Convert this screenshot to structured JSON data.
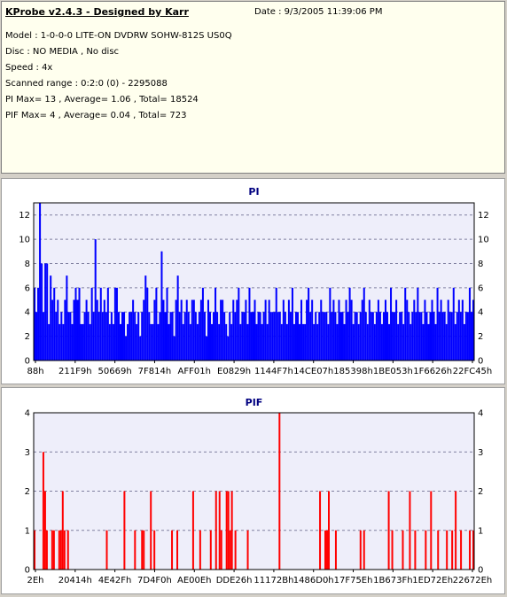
{
  "header": {
    "title": "KProbe v2.4.3 - Designed by Karr",
    "date": "Date : 9/3/2005 11:39:06 PM",
    "lines": [
      "Model : 1-0-0-0 LITE-ON DVDRW SOHW-812S  US0Q",
      "Disc : NO MEDIA , No disc",
      "Speed : 4x",
      "Scanned range : 0:2:0 (0) - 2295088",
      "PI Max= 13 , Average= 1.06 , Total= 18524",
      "PIF Max= 4 , Average= 0.04 , Total= 723"
    ]
  },
  "colors": {
    "background": "#d4d0c8",
    "info_background": "#ffffee",
    "plot_background": "#eeeefa",
    "pi_series": "#0000ff",
    "pif_series": "#ff0000",
    "chart_title": "#000080",
    "gridline": "#8080a0"
  },
  "chart_data": [
    {
      "type": "bar",
      "title": "PI",
      "ylim": [
        0,
        13
      ],
      "yticks": [
        0,
        2,
        4,
        6,
        8,
        10,
        12
      ],
      "y_axis_both_sides": true,
      "grid": "horizontal dashed",
      "xticks": [
        "88h",
        "211F9h",
        "50669h",
        "7F814h",
        "AFF01h",
        "E0829h",
        "1144F7h",
        "14CE07h",
        "185398h",
        "1BE053h",
        "1F6626h",
        "22FC45h"
      ],
      "series": [
        {
          "values": [
            6,
            4,
            6,
            13,
            8,
            4,
            8,
            8,
            3,
            7,
            5,
            6,
            4,
            5,
            3,
            4,
            3,
            5,
            7,
            4,
            4,
            3,
            5,
            6,
            5,
            6,
            3,
            3,
            4,
            5,
            4,
            3,
            6,
            4,
            10,
            5,
            4,
            6,
            4,
            5,
            4,
            6,
            3,
            4,
            3,
            6,
            6,
            4,
            3,
            4,
            4,
            2,
            3,
            4,
            4,
            5,
            4,
            3,
            4,
            2,
            4,
            5,
            7,
            6,
            4,
            3,
            3,
            5,
            6,
            3,
            4,
            9,
            5,
            4,
            6,
            3,
            4,
            4,
            2,
            5,
            7,
            4,
            5,
            3,
            4,
            5,
            4,
            3,
            5,
            5,
            4,
            3,
            4,
            5,
            6,
            4,
            2,
            5,
            4,
            3,
            4,
            6,
            4,
            3,
            5,
            5,
            4,
            3,
            2,
            4,
            3,
            5,
            4,
            5,
            6,
            3,
            4,
            4,
            5,
            3,
            6,
            4,
            4,
            5,
            3,
            4,
            4,
            3,
            4,
            5,
            3,
            5,
            4,
            4,
            4,
            6,
            4,
            4,
            3,
            5,
            4,
            3,
            5,
            4,
            6,
            3,
            4,
            4,
            3,
            5,
            3,
            3,
            5,
            6,
            4,
            5,
            3,
            4,
            3,
            4,
            5,
            4,
            4,
            4,
            3,
            6,
            4,
            5,
            4,
            3,
            5,
            4,
            4,
            3,
            5,
            4,
            6,
            5,
            3,
            4,
            4,
            3,
            4,
            5,
            6,
            4,
            3,
            5,
            4,
            4,
            3,
            4,
            5,
            4,
            3,
            4,
            5,
            4,
            3,
            6,
            4,
            4,
            5,
            3,
            4,
            4,
            3,
            6,
            5,
            4,
            3,
            4,
            5,
            4,
            6,
            4,
            4,
            3,
            5,
            4,
            3,
            4,
            5,
            4,
            3,
            6,
            4,
            5,
            4,
            4,
            3,
            5,
            4,
            4,
            6,
            3,
            4,
            5,
            4,
            5,
            3,
            4,
            4,
            6,
            4,
            5
          ]
        }
      ]
    },
    {
      "type": "bar",
      "title": "PIF",
      "ylim": [
        0,
        4
      ],
      "yticks": [
        0,
        1,
        2,
        3,
        4
      ],
      "y_axis_both_sides": true,
      "grid": "horizontal dashed",
      "xticks": [
        "2Eh",
        "20414h",
        "4E42Fh",
        "7D4F0h",
        "AE00Eh",
        "DDE26h",
        "11172Bh",
        "1486D0h",
        "17F75Eh",
        "1B673Fh",
        "1ED72Eh",
        "22672Eh"
      ],
      "series": [
        {
          "values": [
            1,
            0,
            0,
            0,
            0,
            3,
            2,
            1,
            0,
            0,
            1,
            1,
            0,
            0,
            1,
            1,
            2,
            1,
            0,
            1,
            0,
            0,
            0,
            0,
            0,
            0,
            0,
            0,
            0,
            0,
            0,
            0,
            0,
            0,
            0,
            0,
            0,
            0,
            0,
            0,
            0,
            1,
            0,
            0,
            0,
            0,
            0,
            0,
            0,
            0,
            0,
            2,
            0,
            0,
            0,
            0,
            0,
            1,
            0,
            0,
            0,
            1,
            1,
            0,
            0,
            0,
            2,
            0,
            1,
            0,
            0,
            0,
            0,
            0,
            0,
            0,
            0,
            0,
            1,
            0,
            0,
            1,
            0,
            0,
            0,
            0,
            0,
            0,
            0,
            0,
            2,
            0,
            0,
            0,
            1,
            0,
            0,
            0,
            0,
            0,
            1,
            0,
            0,
            2,
            0,
            2,
            1,
            0,
            0,
            2,
            2,
            1,
            2,
            0,
            1,
            0,
            0,
            0,
            0,
            0,
            0,
            1,
            0,
            0,
            0,
            0,
            0,
            0,
            0,
            0,
            0,
            0,
            0,
            0,
            0,
            0,
            0,
            0,
            0,
            4,
            0,
            0,
            0,
            0,
            0,
            0,
            0,
            0,
            0,
            0,
            0,
            0,
            0,
            0,
            0,
            0,
            0,
            0,
            0,
            0,
            0,
            0,
            2,
            0,
            0,
            1,
            1,
            2,
            0,
            0,
            0,
            1,
            0,
            0,
            0,
            0,
            0,
            0,
            0,
            0,
            0,
            0,
            0,
            0,
            0,
            1,
            0,
            1,
            0,
            0,
            0,
            0,
            0,
            0,
            0,
            0,
            0,
            0,
            0,
            0,
            0,
            2,
            0,
            1,
            0,
            0,
            0,
            0,
            0,
            1,
            0,
            0,
            0,
            2,
            0,
            0,
            1,
            0,
            0,
            0,
            0,
            0,
            1,
            0,
            0,
            2,
            0,
            0,
            0,
            1,
            0,
            0,
            0,
            0,
            1,
            0,
            0,
            1,
            0,
            2,
            0,
            0,
            1,
            0,
            0,
            0,
            0,
            1,
            0,
            1
          ]
        }
      ]
    }
  ]
}
